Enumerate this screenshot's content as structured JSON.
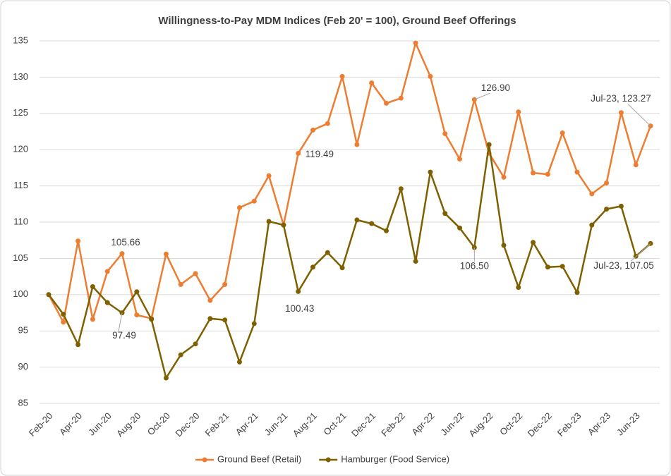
{
  "chart_data": {
    "type": "line",
    "title": "Willingness-to-Pay MDM Indices (Feb 20' = 100), Ground Beef Offerings",
    "categories": [
      "Feb-20",
      null,
      "Apr-20",
      null,
      "Jun-20",
      null,
      "Aug-20",
      null,
      "Oct-20",
      null,
      "Dec-20",
      null,
      "Feb-21",
      null,
      "Apr-21",
      null,
      "Jun-21",
      null,
      "Aug-21",
      null,
      "Oct-21",
      null,
      "Dec-21",
      null,
      "Feb-22",
      null,
      "Apr-22",
      null,
      "Jun-22",
      null,
      "Aug-22",
      null,
      "Oct-22",
      null,
      "Dec-22",
      null,
      "Feb-23",
      null,
      "Apr-23",
      null,
      "Jun-23",
      null
    ],
    "series": [
      {
        "name": "Ground Beef (Retail)",
        "color": "#ed7d31",
        "values": [
          100,
          96.2,
          107.4,
          96.6,
          103.2,
          105.66,
          97.2,
          96.7,
          105.6,
          101.4,
          102.9,
          99.2,
          101.4,
          112.0,
          112.9,
          116.4,
          109.6,
          119.49,
          122.7,
          123.6,
          130.1,
          120.7,
          129.2,
          126.4,
          127.1,
          134.7,
          130.1,
          122.2,
          118.7,
          126.9,
          119.5,
          116.2,
          125.2,
          116.8,
          116.6,
          122.3,
          116.9,
          113.9,
          115.4,
          125.1,
          117.9,
          123.27
        ],
        "value_labels": [
          null,
          null,
          null,
          null,
          null,
          "105.66",
          null,
          null,
          null,
          null,
          null,
          null,
          null,
          null,
          null,
          null,
          null,
          "119.49",
          null,
          null,
          null,
          null,
          null,
          null,
          null,
          null,
          null,
          null,
          null,
          "126.90",
          null,
          null,
          null,
          null,
          null,
          null,
          null,
          null,
          null,
          null,
          null,
          "Jul-23, 123.27"
        ]
      },
      {
        "name": "Hamburger (Food Service)",
        "color": "#7f6000",
        "values": [
          100,
          97.3,
          93.1,
          101.1,
          98.9,
          97.49,
          100.4,
          96.6,
          88.5,
          91.7,
          93.2,
          96.7,
          96.5,
          90.7,
          96.0,
          110.1,
          109.6,
          100.43,
          103.8,
          105.8,
          103.7,
          110.3,
          109.8,
          108.8,
          114.6,
          104.6,
          116.9,
          111.2,
          109.2,
          106.5,
          120.7,
          106.8,
          101.0,
          107.2,
          103.8,
          103.9,
          100.3,
          109.6,
          111.8,
          112.2,
          105.3,
          107.05
        ],
        "value_labels": [
          null,
          null,
          null,
          null,
          null,
          "97.49",
          null,
          null,
          null,
          null,
          null,
          null,
          null,
          null,
          null,
          null,
          null,
          "100.43",
          null,
          null,
          null,
          null,
          null,
          null,
          null,
          null,
          null,
          null,
          null,
          "106.50",
          null,
          null,
          null,
          null,
          null,
          null,
          null,
          null,
          null,
          null,
          null,
          "Jul-23, 107.05"
        ]
      }
    ],
    "ylim": [
      85,
      135
    ],
    "yticks": [
      85,
      90,
      95,
      100,
      105,
      110,
      115,
      120,
      125,
      130,
      135
    ],
    "grid": true
  }
}
